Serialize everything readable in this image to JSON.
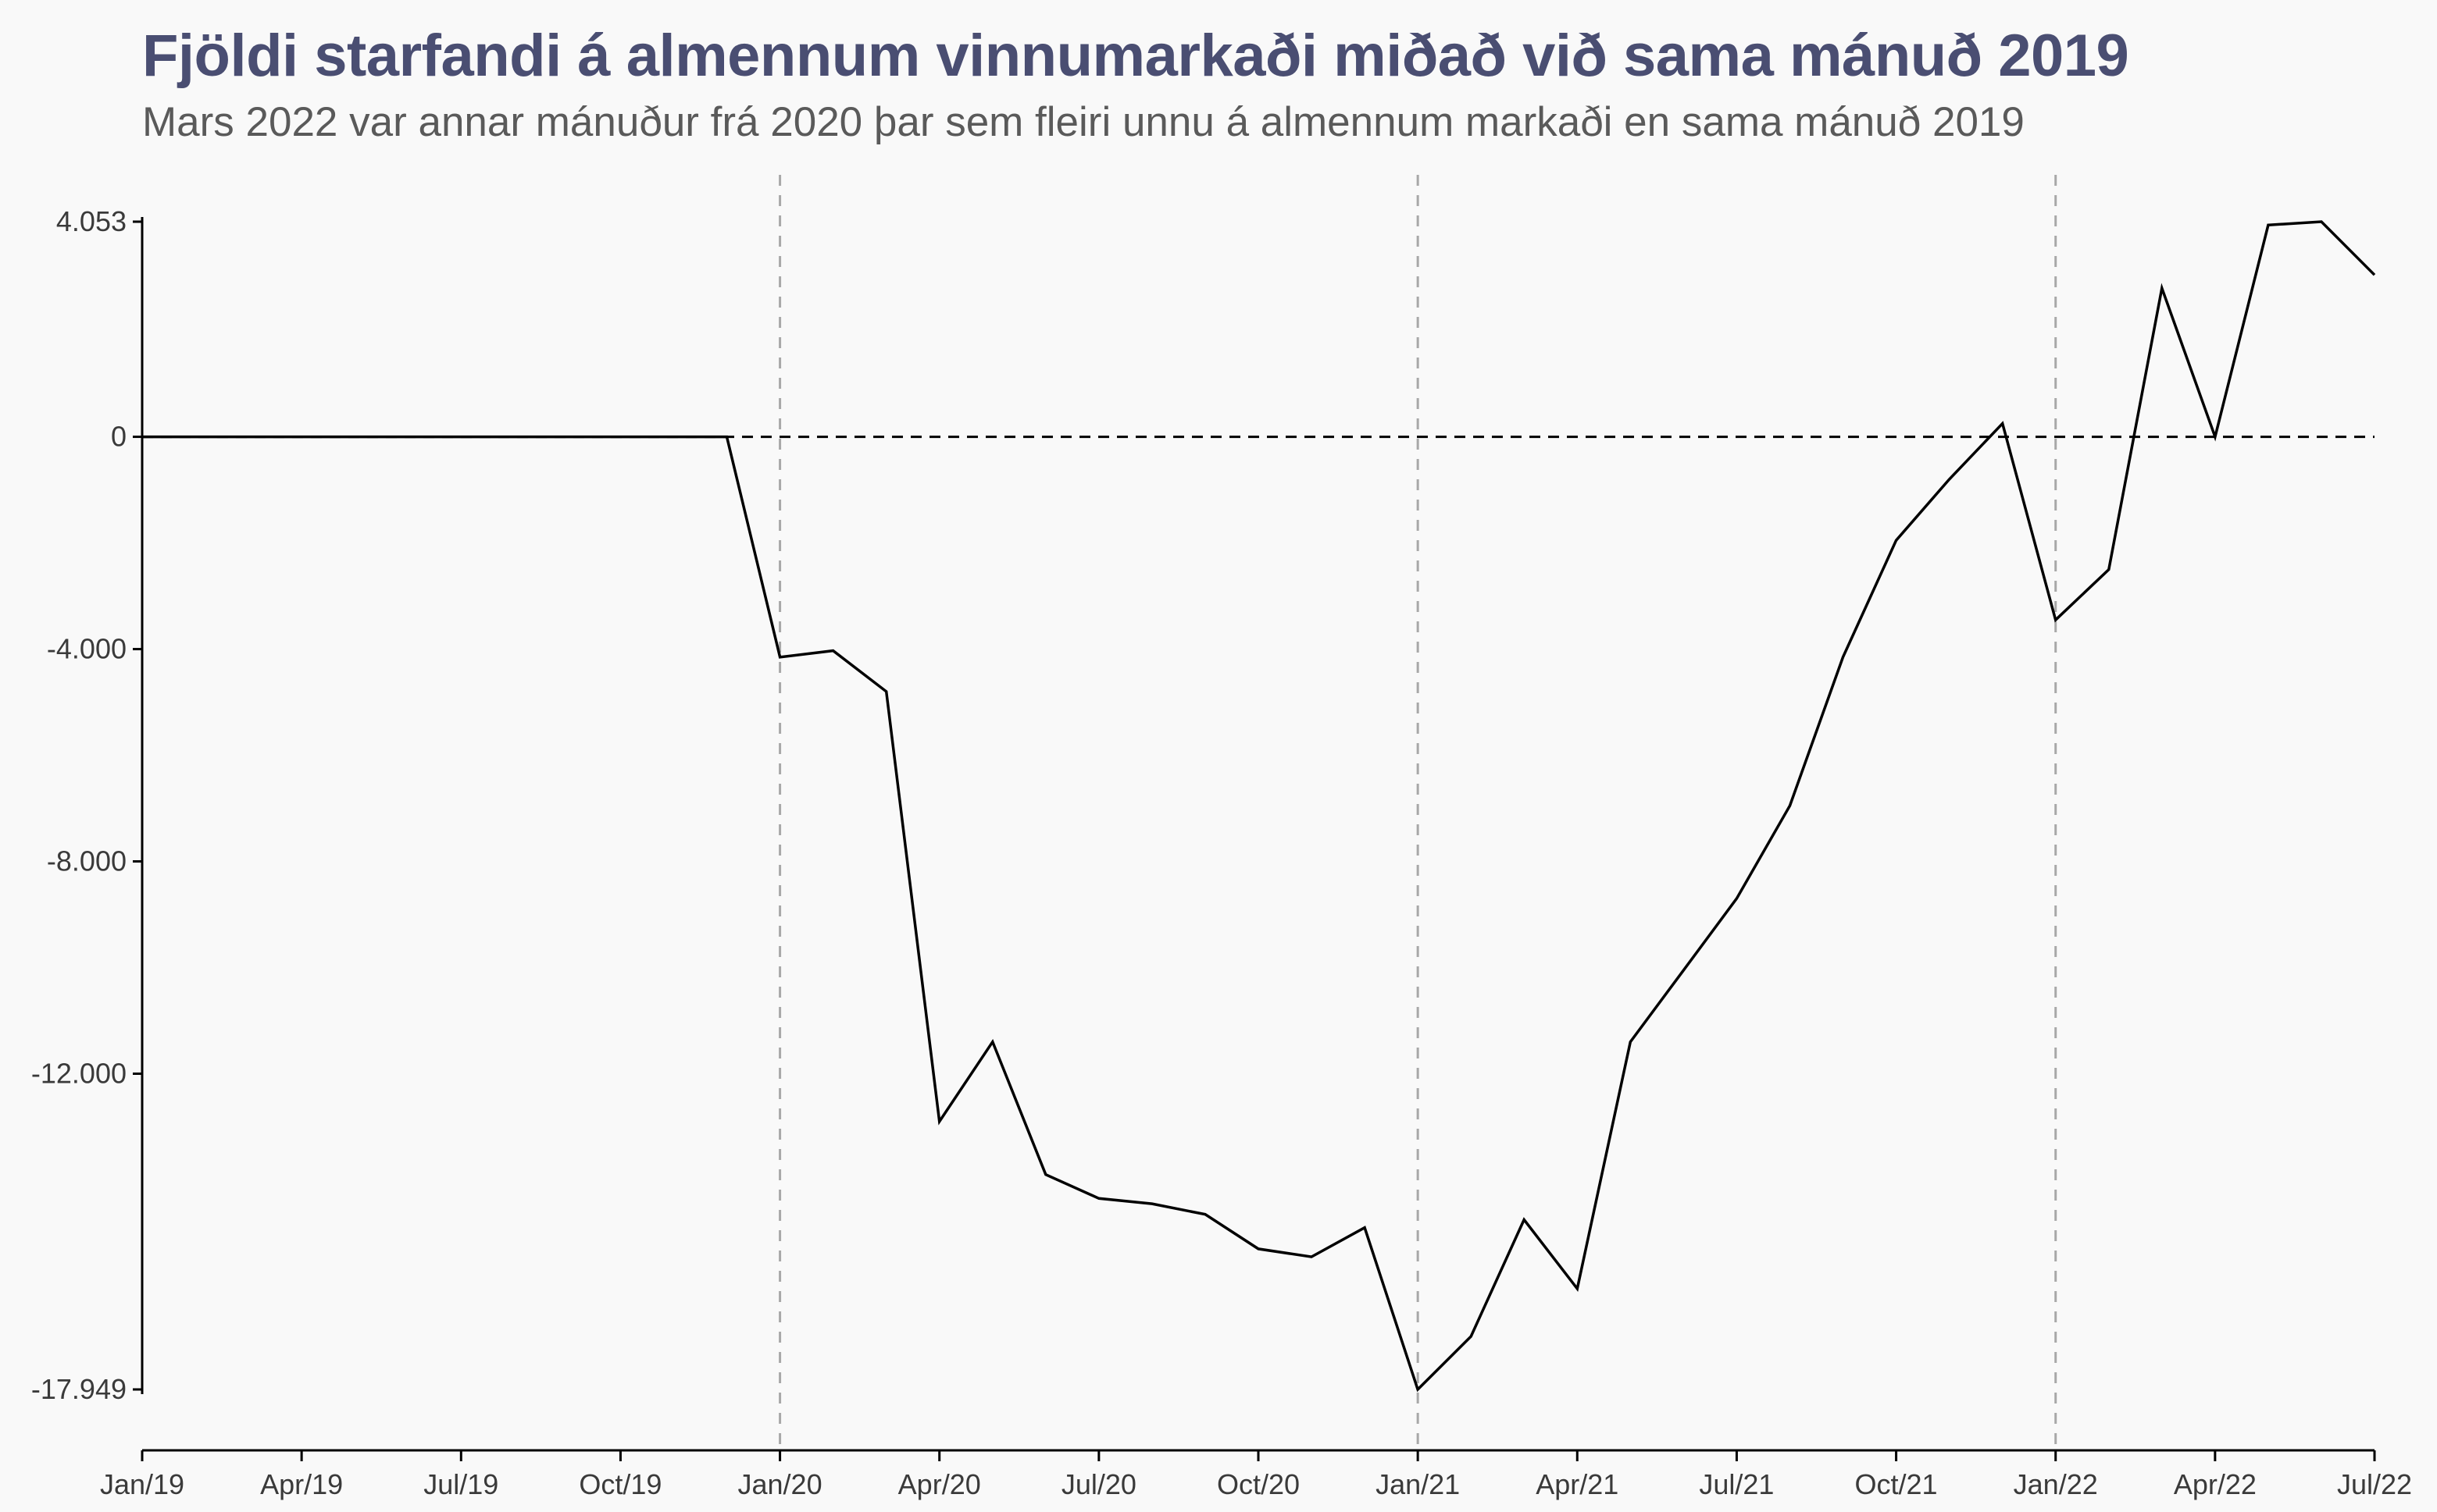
{
  "title": "Fjöldi starfandi á almennum vinnumarkaði miðað við sama mánuð 2019",
  "subtitle": "Mars 2022 var annar mánuður frá 2020 þar sem fleiri unnu á almennum markaði en sama mánuð 2019",
  "colors": {
    "title": "#4a4e72",
    "line": "#000000",
    "zero_line": "#000000",
    "year_divider": "#a8a8a8",
    "background": "#f9f9f9"
  },
  "chart_data": {
    "type": "line",
    "grid": false,
    "legend": "none",
    "xlim": [
      "2019-01",
      "2022-07"
    ],
    "ylim": [
      -17949,
      4053
    ],
    "y_ticks": [
      {
        "value": 4053,
        "label": "4.053"
      },
      {
        "value": 0,
        "label": "0"
      },
      {
        "value": -4000,
        "label": "-4.000"
      },
      {
        "value": -8000,
        "label": "-8.000"
      },
      {
        "value": -12000,
        "label": "-12.000"
      },
      {
        "value": -17949,
        "label": "-17.949"
      }
    ],
    "x_ticks": [
      {
        "value": "2019-01",
        "label": "Jan/19"
      },
      {
        "value": "2019-04",
        "label": "Apr/19"
      },
      {
        "value": "2019-07",
        "label": "Jul/19"
      },
      {
        "value": "2019-10",
        "label": "Oct/19"
      },
      {
        "value": "2020-01",
        "label": "Jan/20"
      },
      {
        "value": "2020-04",
        "label": "Apr/20"
      },
      {
        "value": "2020-07",
        "label": "Jul/20"
      },
      {
        "value": "2020-10",
        "label": "Oct/20"
      },
      {
        "value": "2021-01",
        "label": "Jan/21"
      },
      {
        "value": "2021-04",
        "label": "Apr/21"
      },
      {
        "value": "2021-07",
        "label": "Jul/21"
      },
      {
        "value": "2021-10",
        "label": "Oct/21"
      },
      {
        "value": "2022-01",
        "label": "Jan/22"
      },
      {
        "value": "2022-04",
        "label": "Apr/22"
      },
      {
        "value": "2022-07",
        "label": "Jul/22"
      }
    ],
    "reference_lines": {
      "horizontal": [
        0
      ],
      "vertical": [
        "2020-01",
        "2021-01",
        "2022-01"
      ]
    },
    "series": [
      {
        "x": [
          "2019-01",
          "2019-02",
          "2019-03",
          "2019-04",
          "2019-05",
          "2019-06",
          "2019-07",
          "2019-08",
          "2019-09",
          "2019-10",
          "2019-11",
          "2019-12",
          "2020-01",
          "2020-02",
          "2020-03",
          "2020-04",
          "2020-05",
          "2020-06",
          "2020-07",
          "2020-08",
          "2020-09",
          "2020-10",
          "2020-11",
          "2020-12",
          "2021-01",
          "2021-02",
          "2021-03",
          "2021-04",
          "2021-05",
          "2021-06",
          "2021-07",
          "2021-08",
          "2021-09",
          "2021-10",
          "2021-11",
          "2021-12",
          "2022-01",
          "2022-02",
          "2022-03",
          "2022-04",
          "2022-05",
          "2022-06",
          "2022-07"
        ],
        "values": [
          0,
          0,
          0,
          0,
          0,
          0,
          0,
          0,
          0,
          0,
          0,
          0,
          -4150,
          -4030,
          -4800,
          -12900,
          -11400,
          -13900,
          -14350,
          -14450,
          -14650,
          -15300,
          -15450,
          -14900,
          -17949,
          -16950,
          -14750,
          -16050,
          -11400,
          -10050,
          -8700,
          -6950,
          -4150,
          -1950,
          -800,
          250,
          -3450,
          -2500,
          2800,
          0,
          3990,
          4053,
          3050
        ]
      }
    ]
  }
}
